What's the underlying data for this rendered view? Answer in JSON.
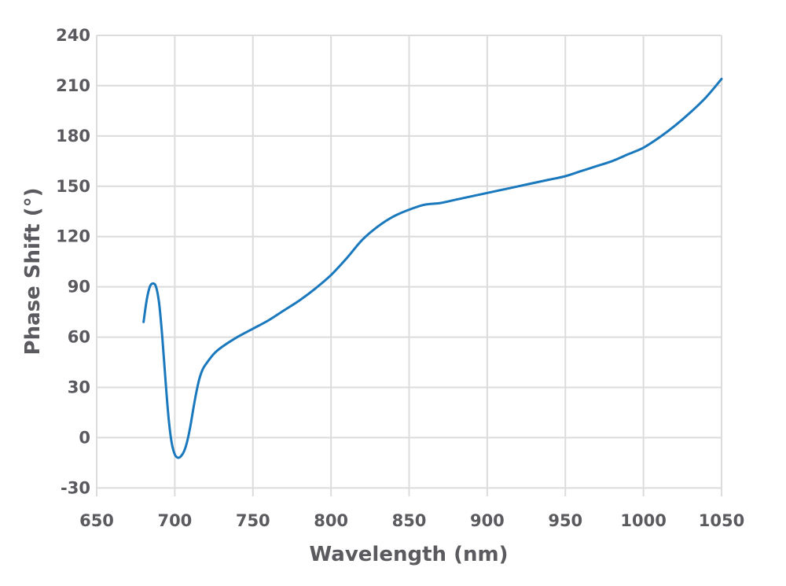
{
  "chart_data": {
    "type": "line",
    "title": "",
    "xlabel": "Wavelength (nm)",
    "ylabel": "Phase Shift (°)",
    "xlim": [
      650,
      1050
    ],
    "ylim": [
      -35,
      240
    ],
    "xticks": [
      650,
      700,
      750,
      800,
      850,
      900,
      950,
      1000,
      1050
    ],
    "yticks": [
      -30,
      0,
      30,
      60,
      90,
      120,
      150,
      180,
      210,
      240
    ],
    "grid": true,
    "legend": "none",
    "colors": {
      "line": "#1a78bd",
      "grid": "#dcdcdc",
      "text": "#5a5a5f"
    },
    "series": [
      {
        "x": [
          680,
          682,
          684,
          686,
          688,
          690,
          692,
          694,
          696,
          698,
          700,
          702,
          704,
          706,
          708,
          710,
          712,
          714,
          716,
          718,
          720,
          725,
          730,
          740,
          750,
          760,
          770,
          780,
          790,
          800,
          810,
          820,
          830,
          840,
          850,
          860,
          870,
          880,
          890,
          900,
          910,
          920,
          930,
          940,
          950,
          960,
          970,
          980,
          990,
          1000,
          1010,
          1020,
          1030,
          1040,
          1050
        ],
        "y": [
          69,
          82,
          90,
          92,
          90,
          80,
          60,
          35,
          12,
          -3,
          -10,
          -12,
          -11,
          -8,
          -2,
          7,
          18,
          28,
          36,
          41,
          44,
          50,
          54,
          60,
          65,
          70,
          76,
          82,
          89,
          97,
          107,
          118,
          126,
          132,
          136,
          139,
          140,
          142,
          144,
          146,
          148,
          150,
          152,
          154,
          156,
          159,
          162,
          165,
          169,
          173,
          179,
          186,
          194,
          203,
          214
        ]
      }
    ]
  }
}
